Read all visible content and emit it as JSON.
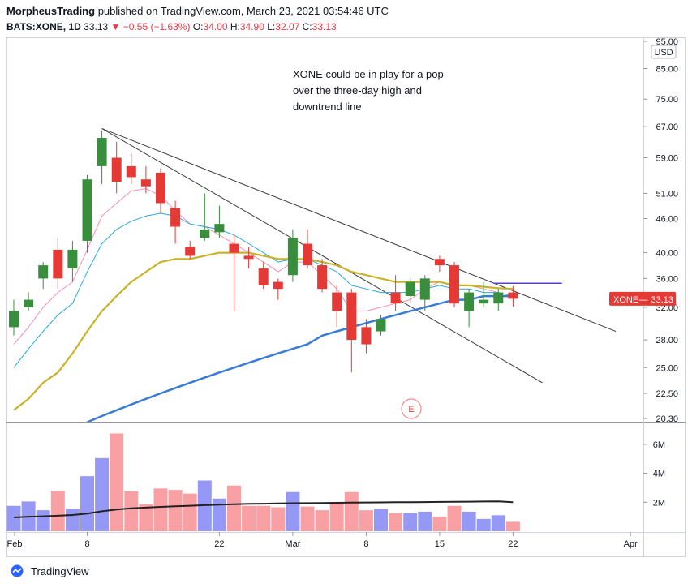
{
  "header": {
    "author": "MorpheusTrading",
    "published_text": "published on TradingView.com, March 23, 2021 03:54:46 UTC",
    "symbol": "BATS:XONE, 1D",
    "last": "33.13",
    "change": "−0.55 (−1.63%)",
    "o_label": "O:",
    "o_val": "34.00",
    "h_label": "H:",
    "h_val": "34.90",
    "l_label": "L:",
    "l_val": "32.07",
    "c_label": "C:",
    "c_val": "33.13"
  },
  "annotation": {
    "lines": [
      "XONE could be in play for a pop",
      "over the three-day high and",
      "downtrend line"
    ]
  },
  "currency_label": "USD",
  "price_tag": {
    "symbol": "XONE",
    "value": "33.13"
  },
  "earnings_marker": "E",
  "footer_brand": "TradingView",
  "colors": {
    "up": "#388e3c",
    "down": "#e53935",
    "vol_up": "#9598f4",
    "vol_down": "#f8a0a4",
    "ema_pink": "#f48fb1",
    "ema_cyan": "#29a8e0",
    "ema_gold": "#c9b227",
    "ema_blue": "#3a7bd5",
    "vol_ma": "#222222",
    "hline": "#5a3fd0",
    "tag": "#e53935"
  },
  "chart_data": {
    "type": "candlestick",
    "price_scale": "log",
    "y_ticks": [
      20.3,
      22.5,
      25.0,
      28.0,
      32.0,
      36.0,
      40.0,
      46.0,
      51.0,
      59.0,
      67.0,
      75.0,
      85.0,
      95.0
    ],
    "y_tick_labels": [
      "20.30",
      "22.50",
      "25.00",
      "28.00",
      "32.00",
      "36.00",
      "40.00",
      "46.00",
      "51.00",
      "59.00",
      "67.00",
      "75.00",
      "85.00",
      "95.00"
    ],
    "x_ticks": [
      {
        "label": "Feb",
        "index": 0
      },
      {
        "label": "8",
        "index": 5
      },
      {
        "label": "22",
        "index": 14
      },
      {
        "label": "Mar",
        "index": 19
      },
      {
        "label": "8",
        "index": 24
      },
      {
        "label": "15",
        "index": 29
      },
      {
        "label": "22",
        "index": 34
      },
      {
        "label": "Apr",
        "index": 42
      }
    ],
    "candles": [
      {
        "o": 29.5,
        "h": 33.0,
        "l": 28.5,
        "c": 31.5
      },
      {
        "o": 32.0,
        "h": 34.0,
        "l": 31.5,
        "c": 33.0
      },
      {
        "o": 36.0,
        "h": 38.5,
        "l": 34.5,
        "c": 38.0
      },
      {
        "o": 40.5,
        "h": 42.5,
        "l": 34.5,
        "c": 36.0
      },
      {
        "o": 37.5,
        "h": 42.0,
        "l": 35.5,
        "c": 40.5
      },
      {
        "o": 42.0,
        "h": 55.0,
        "l": 40.0,
        "c": 54.0
      },
      {
        "o": 57.0,
        "h": 66.0,
        "l": 53.0,
        "c": 64.0
      },
      {
        "o": 59.0,
        "h": 63.0,
        "l": 51.0,
        "c": 53.5
      },
      {
        "o": 57.0,
        "h": 60.0,
        "l": 53.0,
        "c": 54.5
      },
      {
        "o": 54.0,
        "h": 57.0,
        "l": 51.0,
        "c": 52.5
      },
      {
        "o": 55.5,
        "h": 56.5,
        "l": 47.0,
        "c": 49.0
      },
      {
        "o": 48.0,
        "h": 49.5,
        "l": 41.5,
        "c": 44.5
      },
      {
        "o": 41.0,
        "h": 42.0,
        "l": 39.0,
        "c": 39.5
      },
      {
        "o": 42.5,
        "h": 51.0,
        "l": 42.0,
        "c": 44.0
      },
      {
        "o": 43.5,
        "h": 48.5,
        "l": 42.5,
        "c": 45.0
      },
      {
        "o": 41.5,
        "h": 43.0,
        "l": 31.5,
        "c": 40.0
      },
      {
        "o": 39.5,
        "h": 41.0,
        "l": 37.5,
        "c": 39.0
      },
      {
        "o": 37.5,
        "h": 38.5,
        "l": 34.5,
        "c": 35.0
      },
      {
        "o": 35.5,
        "h": 36.0,
        "l": 33.0,
        "c": 34.5
      },
      {
        "o": 36.5,
        "h": 44.0,
        "l": 35.5,
        "c": 42.5
      },
      {
        "o": 41.5,
        "h": 44.0,
        "l": 37.5,
        "c": 38.0
      },
      {
        "o": 38.0,
        "h": 39.0,
        "l": 34.0,
        "c": 34.5
      },
      {
        "o": 34.0,
        "h": 35.0,
        "l": 29.5,
        "c": 31.5
      },
      {
        "o": 34.0,
        "h": 34.5,
        "l": 24.5,
        "c": 28.0
      },
      {
        "o": 29.5,
        "h": 30.5,
        "l": 26.5,
        "c": 27.5
      },
      {
        "o": 29.0,
        "h": 31.0,
        "l": 28.5,
        "c": 30.5
      },
      {
        "o": 34.0,
        "h": 36.5,
        "l": 31.5,
        "c": 32.5
      },
      {
        "o": 33.5,
        "h": 36.0,
        "l": 32.5,
        "c": 35.5
      },
      {
        "o": 33.0,
        "h": 36.5,
        "l": 31.5,
        "c": 36.0
      },
      {
        "o": 39.0,
        "h": 39.5,
        "l": 37.0,
        "c": 38.0
      },
      {
        "o": 38.0,
        "h": 38.5,
        "l": 32.0,
        "c": 32.5
      },
      {
        "o": 31.5,
        "h": 34.5,
        "l": 29.5,
        "c": 34.0
      },
      {
        "o": 32.5,
        "h": 35.5,
        "l": 32.0,
        "c": 33.0
      },
      {
        "o": 32.5,
        "h": 34.5,
        "l": 31.5,
        "c": 34.0
      },
      {
        "o": 34.0,
        "h": 34.9,
        "l": 32.07,
        "c": 33.13
      }
    ],
    "ema_pink": [
      27.5,
      29.5,
      32.0,
      34.0,
      35.5,
      40.5,
      46.5,
      49.0,
      51.5,
      52.0,
      50.5,
      47.5,
      45.0,
      44.5,
      43.0,
      41.5,
      40.0,
      38.5,
      37.0,
      38.5,
      38.5,
      36.5,
      34.5,
      31.5,
      31.5,
      32.0,
      32.5,
      33.0,
      34.5,
      35.5,
      35.0,
      35.0,
      34.5,
      34.0,
      33.5
    ],
    "ema_cyan": [
      25.0,
      27.0,
      29.0,
      31.0,
      32.5,
      37.0,
      41.5,
      44.0,
      45.5,
      46.5,
      47.0,
      46.5,
      45.0,
      44.5,
      44.0,
      43.0,
      41.5,
      40.0,
      38.5,
      39.0,
      39.0,
      38.0,
      37.0,
      35.0,
      34.5,
      34.0,
      34.0,
      34.0,
      34.5,
      35.0,
      34.5,
      34.5,
      34.0,
      34.0,
      33.5
    ],
    "ema_gold": [
      21.0,
      22.0,
      23.5,
      24.5,
      26.5,
      29.0,
      31.5,
      33.5,
      35.5,
      37.0,
      38.5,
      39.0,
      39.0,
      39.5,
      40.0,
      40.0,
      40.0,
      39.5,
      39.0,
      39.0,
      39.0,
      38.5,
      38.0,
      37.0,
      36.5,
      36.0,
      35.5,
      35.5,
      35.5,
      35.5,
      35.0,
      35.0,
      34.8,
      34.6,
      34.5
    ],
    "ema_blue_start": 5,
    "ema_blue": [
      20.0,
      20.5,
      21.0,
      21.5,
      22.0,
      22.5,
      23.0,
      23.5,
      24.0,
      24.5,
      25.0,
      25.5,
      26.0,
      26.5,
      27.0,
      27.5,
      28.5,
      29.0,
      29.5,
      30.0,
      30.5,
      31.0,
      31.5,
      32.0,
      32.5,
      33.0,
      33.0,
      33.5,
      33.5,
      33.5
    ],
    "trendlines": [
      {
        "from": {
          "index": 6,
          "price": 66.5
        },
        "to": {
          "index": 41,
          "price": 29.0
        }
      },
      {
        "from": {
          "index": 6,
          "price": 66.5
        },
        "to": {
          "index": 36,
          "price": 23.5
        }
      }
    ],
    "hline": {
      "from_index": 33,
      "to_index": 37,
      "price": 35.3
    },
    "volume_ticks": [
      "2M",
      "4M",
      "6M"
    ],
    "volume_tick_values": [
      2,
      4,
      6
    ],
    "volume_max": 7,
    "volume": [
      1.75,
      2.05,
      1.45,
      2.8,
      1.55,
      3.8,
      5.05,
      6.75,
      2.75,
      1.85,
      2.95,
      2.85,
      2.6,
      3.5,
      2.25,
      3.15,
      1.75,
      1.75,
      1.65,
      2.7,
      1.7,
      1.45,
      1.95,
      2.7,
      1.45,
      1.55,
      1.25,
      1.25,
      1.35,
      1.0,
      1.75,
      1.35,
      0.85,
      1.1,
      0.65
    ],
    "volume_ma": [
      0.95,
      1.0,
      1.03,
      1.07,
      1.12,
      1.22,
      1.38,
      1.5,
      1.58,
      1.63,
      1.68,
      1.72,
      1.76,
      1.8,
      1.83,
      1.86,
      1.89,
      1.9,
      1.92,
      1.93,
      1.94,
      1.95,
      1.96,
      1.97,
      1.98,
      1.99,
      2.0,
      2.0,
      2.01,
      2.02,
      2.03,
      2.04,
      2.05,
      2.06,
      2.0
    ]
  }
}
